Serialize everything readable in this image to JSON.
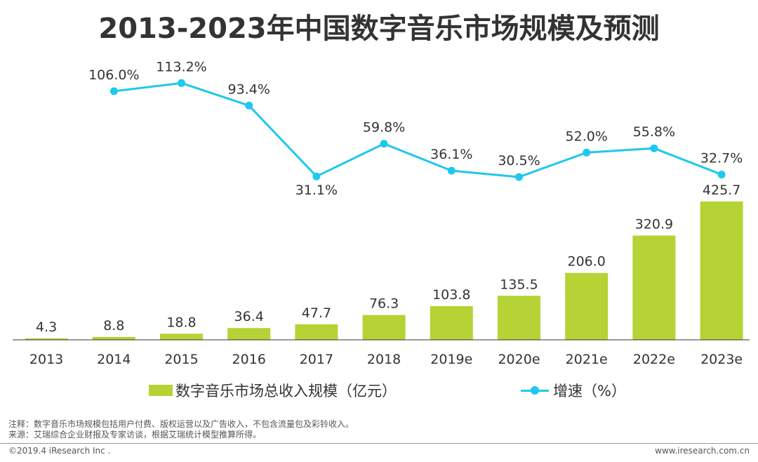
{
  "page": {
    "title": "2013-2023年中国数字音乐市场规模及预测",
    "note": "注释：数字音乐市场规模包括用户付费、版权运营以及广告收入，不包含流量包及彩铃收入。",
    "source": "来源：艾瑞综合企业财报及专家访谈，根据艾瑞统计模型推算所得。",
    "copyright": "©2019.4 iResearch Inc .",
    "website": "www.iresearch.com.cn"
  },
  "legend": {
    "bar_label": "数字音乐市场总收入规模（亿元）",
    "line_label": "增速（%）"
  },
  "colors": {
    "bar": "#b5d334",
    "line": "#1ec8ee",
    "text": "#333333",
    "axis": "#333333"
  },
  "chart_data": {
    "type": "bar+line",
    "title": "2013-2023年中国数字音乐市场规模及预测",
    "categories": [
      "2013",
      "2014",
      "2015",
      "2016",
      "2017",
      "2018",
      "2019e",
      "2020e",
      "2021e",
      "2022e",
      "2023e"
    ],
    "series": [
      {
        "name": "数字音乐市场总收入规模（亿元）",
        "type": "bar",
        "values": [
          4.3,
          8.8,
          18.8,
          36.4,
          47.7,
          76.3,
          103.8,
          135.5,
          206.0,
          320.9,
          425.7
        ],
        "labels": [
          "4.3",
          "8.8",
          "18.8",
          "36.4",
          "47.7",
          "76.3",
          "103.8",
          "135.5",
          "206.0",
          "320.9",
          "425.7"
        ]
      },
      {
        "name": "增速（%）",
        "type": "line",
        "values": [
          null,
          106.0,
          113.2,
          93.4,
          31.1,
          59.8,
          36.1,
          30.5,
          52.0,
          55.8,
          32.7
        ],
        "labels": [
          "",
          "106.0%",
          "113.2%",
          "93.4%",
          "31.1%",
          "59.8%",
          "36.1%",
          "30.5%",
          "52.0%",
          "55.8%",
          "32.7%"
        ],
        "label_position": [
          "",
          "above",
          "above",
          "above",
          "below",
          "above",
          "above",
          "above",
          "above",
          "above",
          "above"
        ]
      }
    ],
    "xlabel": "",
    "ylabel": "",
    "legend_position": "bottom"
  }
}
